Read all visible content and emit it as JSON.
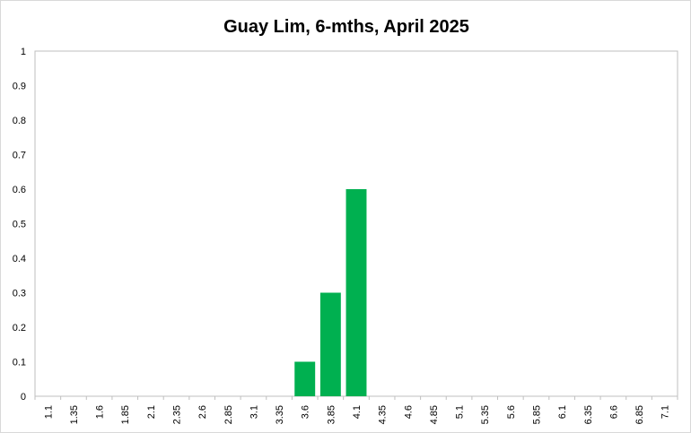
{
  "chart_data": {
    "type": "bar",
    "title": "Guay Lim, 6-mths, April 2025",
    "xlabel": "",
    "ylabel": "",
    "categories": [
      "1.1",
      "1.35",
      "1.6",
      "1.85",
      "2.1",
      "2.35",
      "2.6",
      "2.85",
      "3.1",
      "3.35",
      "3.6",
      "3.85",
      "4.1",
      "4.35",
      "4.6",
      "4.85",
      "5.1",
      "5.35",
      "5.6",
      "5.85",
      "6.1",
      "6.35",
      "6.6",
      "6.85",
      "7.1"
    ],
    "values": [
      0,
      0,
      0,
      0,
      0,
      0,
      0,
      0,
      0,
      0,
      0.1,
      0.3,
      0.6,
      0,
      0,
      0,
      0,
      0,
      0,
      0,
      0,
      0,
      0,
      0,
      0
    ],
    "ylim": [
      0,
      1
    ],
    "yticks": [
      "0",
      "0.1",
      "0.2",
      "0.3",
      "0.4",
      "0.5",
      "0.6",
      "0.7",
      "0.8",
      "0.9",
      "1"
    ],
    "grid": false,
    "legend": "none",
    "bar_color": "#00b050"
  }
}
